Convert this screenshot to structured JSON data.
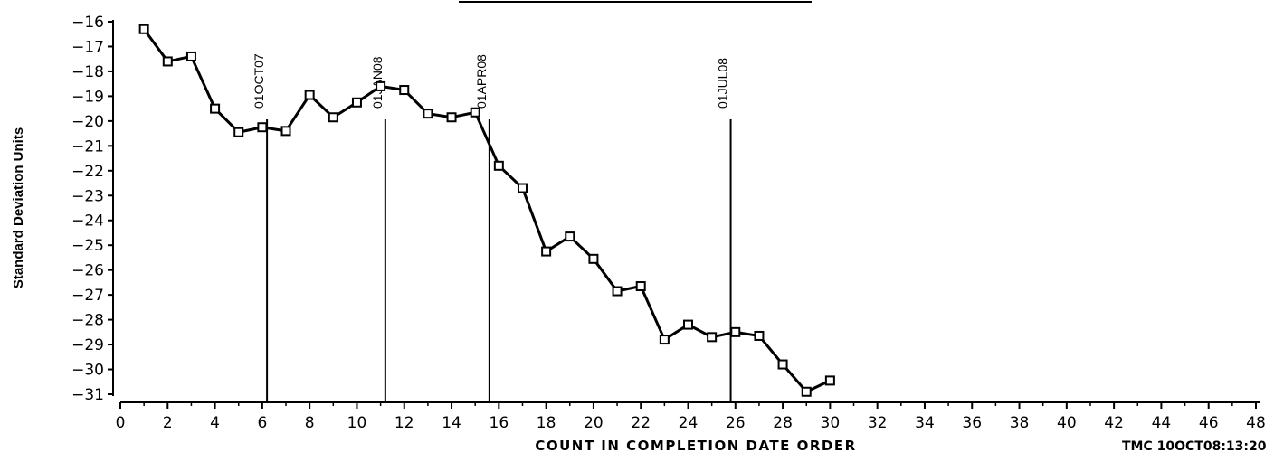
{
  "chart_data": {
    "type": "line",
    "xlabel": "COUNT IN COMPLETION DATE ORDER",
    "ylabel": "Standard Deviation Units",
    "xlim": [
      0,
      48
    ],
    "ylim": [
      -31,
      -16
    ],
    "xticks": [
      0,
      2,
      4,
      6,
      8,
      10,
      12,
      14,
      16,
      18,
      20,
      22,
      24,
      26,
      28,
      30,
      32,
      34,
      36,
      38,
      40,
      42,
      44,
      46,
      48
    ],
    "yticks": [
      -16,
      -17,
      -18,
      -19,
      -20,
      -21,
      -22,
      -23,
      -24,
      -25,
      -26,
      -27,
      -28,
      -29,
      -30,
      -31
    ],
    "ytick_labels": [
      "−16",
      "−17",
      "−18",
      "−19",
      "−20",
      "−21",
      "−22",
      "−23",
      "−24",
      "−25",
      "−26",
      "−27",
      "−28",
      "−29",
      "−30",
      "−31"
    ],
    "series": [
      {
        "marker": "square",
        "x": [
          1,
          2,
          3,
          4,
          5,
          6,
          7,
          8,
          9,
          10,
          11,
          12,
          13,
          14,
          15,
          16,
          17,
          18,
          19,
          20,
          21,
          22,
          23,
          24,
          25,
          26,
          27,
          28,
          29,
          30
        ],
        "values": [
          -16.3,
          -17.6,
          -17.4,
          -19.5,
          -20.45,
          -20.25,
          -20.4,
          -18.95,
          -19.85,
          -19.25,
          -18.6,
          -18.75,
          -19.7,
          -19.85,
          -19.65,
          -21.8,
          -22.7,
          -25.25,
          -24.65,
          -25.55,
          -26.85,
          -26.65,
          -28.8,
          -28.2,
          -28.7,
          -28.5,
          -28.65,
          -29.8,
          -30.9,
          -30.45
        ]
      }
    ],
    "reference_lines": [
      {
        "x": 6.2,
        "label": "01OCT07"
      },
      {
        "x": 11.2,
        "label": "01JAN08"
      },
      {
        "x": 15.6,
        "label": "01APR08"
      },
      {
        "x": 25.8,
        "label": "01JUL08"
      }
    ],
    "footnote": "TMC   10OCT08:13:20",
    "colors": {
      "line": "#000000",
      "background": "#ffffff"
    }
  }
}
